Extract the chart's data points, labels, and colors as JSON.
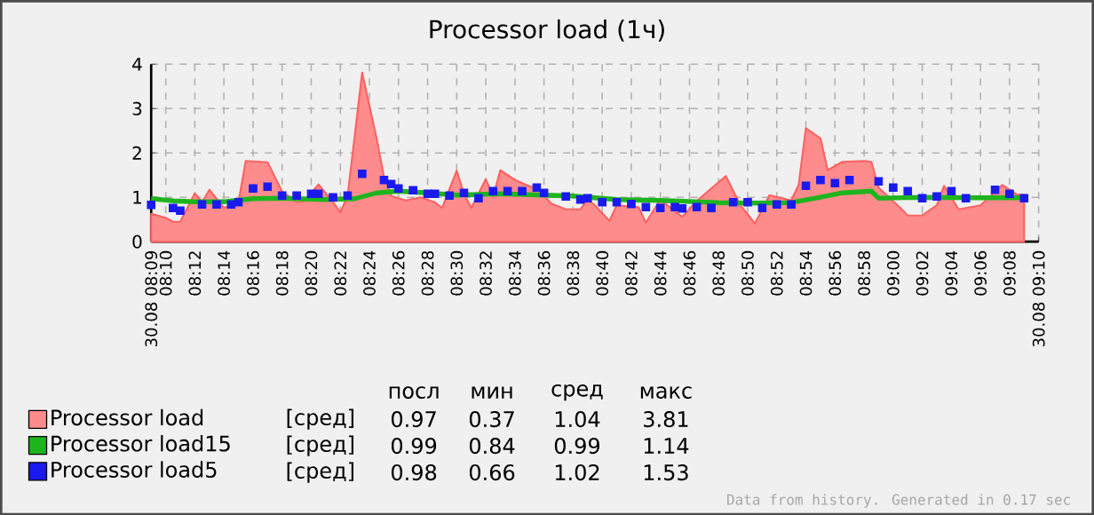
{
  "chart_data": {
    "type": "area",
    "title": "Processor load (1ч)",
    "xlim": [
      8.15,
      9.1667
    ],
    "ylim": [
      0,
      4
    ],
    "yticks": [
      0,
      1,
      2,
      3,
      4
    ],
    "xticks": [
      {
        "value": 8.15,
        "label": "30.08 08:09"
      },
      {
        "value": 8.1667,
        "label": "08:10"
      },
      {
        "value": 8.2,
        "label": "08:12"
      },
      {
        "value": 8.2333,
        "label": "08:14"
      },
      {
        "value": 8.2667,
        "label": "08:16"
      },
      {
        "value": 8.3,
        "label": "08:18"
      },
      {
        "value": 8.3333,
        "label": "08:20"
      },
      {
        "value": 8.3667,
        "label": "08:22"
      },
      {
        "value": 8.4,
        "label": "08:24"
      },
      {
        "value": 8.4333,
        "label": "08:26"
      },
      {
        "value": 8.4667,
        "label": "08:28"
      },
      {
        "value": 8.5,
        "label": "08:30"
      },
      {
        "value": 8.5333,
        "label": "08:32"
      },
      {
        "value": 8.5667,
        "label": "08:34"
      },
      {
        "value": 8.6,
        "label": "08:36"
      },
      {
        "value": 8.6333,
        "label": "08:38"
      },
      {
        "value": 8.6667,
        "label": "08:40"
      },
      {
        "value": 8.7,
        "label": "08:42"
      },
      {
        "value": 8.7333,
        "label": "08:44"
      },
      {
        "value": 8.7667,
        "label": "08:46"
      },
      {
        "value": 8.8,
        "label": "08:48"
      },
      {
        "value": 8.8333,
        "label": "08:50"
      },
      {
        "value": 8.8667,
        "label": "08:52"
      },
      {
        "value": 8.9,
        "label": "08:54"
      },
      {
        "value": 8.9333,
        "label": "08:56"
      },
      {
        "value": 8.9667,
        "label": "08:58"
      },
      {
        "value": 9,
        "label": "09:00"
      },
      {
        "value": 9.0333,
        "label": "09:02"
      },
      {
        "value": 9.0667,
        "label": "09:04"
      },
      {
        "value": 9.1,
        "label": "09:06"
      },
      {
        "value": 9.1333,
        "label": "09:08"
      },
      {
        "value": 9.1667,
        "label": "30.08 09:10"
      }
    ],
    "grid": true,
    "legend": "bottom",
    "series": [
      {
        "name": "Processor load",
        "color": "#ff8c8c",
        "x": [
          8.15,
          8.1667,
          8.175,
          8.1833,
          8.2,
          8.2083,
          8.2167,
          8.2333,
          8.25,
          8.2583,
          8.2833,
          8.3,
          8.3167,
          8.325,
          8.3417,
          8.3583,
          8.3667,
          8.375,
          8.3917,
          8.4083,
          8.4167,
          8.425,
          8.4417,
          8.4583,
          8.475,
          8.4833,
          8.5,
          8.5083,
          8.5167,
          8.5333,
          8.5417,
          8.55,
          8.5667,
          8.5833,
          8.5917,
          8.6083,
          8.625,
          8.6417,
          8.65,
          8.6583,
          8.675,
          8.6833,
          8.7083,
          8.7167,
          8.7333,
          8.7583,
          8.775,
          8.8083,
          8.825,
          8.8417,
          8.8583,
          8.8833,
          8.8917,
          8.9,
          8.9167,
          8.925,
          8.9417,
          8.9667,
          8.975,
          8.9833,
          9.0083,
          9.0167,
          9.0333,
          9.05,
          9.0583,
          9.075,
          9.1,
          9.125,
          9.1417,
          9.15
        ],
        "values": [
          0.63,
          0.54,
          0.45,
          0.45,
          1.09,
          0.89,
          1.17,
          0.76,
          0.89,
          1.82,
          1.79,
          1.13,
          0.89,
          0.91,
          1.29,
          0.89,
          0.66,
          1.03,
          3.81,
          2.32,
          1.46,
          1.03,
          0.93,
          1.0,
          0.89,
          0.76,
          1.6,
          1.08,
          0.76,
          1.41,
          1.02,
          1.61,
          1.39,
          1.25,
          1.22,
          0.86,
          0.73,
          0.73,
          0.95,
          0.82,
          0.47,
          0.82,
          0.78,
          0.43,
          0.95,
          0.56,
          0.92,
          1.48,
          0.82,
          0.41,
          1.05,
          0.93,
          1.28,
          2.56,
          2.33,
          1.61,
          1.8,
          1.82,
          1.8,
          1.22,
          0.76,
          0.59,
          0.59,
          0.82,
          1.26,
          0.73,
          0.82,
          1.28,
          1.06,
          1.06
        ]
      },
      {
        "name": "Processor load15",
        "type": "line",
        "color": "#1eb41e",
        "line_style": "solid",
        "x": [
          8.15,
          8.175,
          8.2,
          8.2333,
          8.2667,
          8.3,
          8.35,
          8.3833,
          8.4083,
          8.4333,
          8.4667,
          8.5,
          8.55,
          8.6,
          8.6333,
          8.6833,
          8.7333,
          8.8,
          8.8333,
          8.8833,
          8.9167,
          8.9417,
          8.975,
          8.9833,
          9.0333,
          9.1,
          9.15
        ],
        "values": [
          0.97,
          0.92,
          0.9,
          0.9,
          0.97,
          0.98,
          0.95,
          0.97,
          1.1,
          1.14,
          1.1,
          1.05,
          1.08,
          1.05,
          1.03,
          0.95,
          0.93,
          0.88,
          0.87,
          0.88,
          1.0,
          1.1,
          1.14,
          0.98,
          1.0,
          0.99,
          0.99
        ]
      },
      {
        "name": "Processor load5",
        "type": "scatter",
        "marker": "square",
        "color": "#1a1aee",
        "x": [
          8.15,
          8.175,
          8.1833,
          8.2083,
          8.225,
          8.2417,
          8.25,
          8.2667,
          8.2833,
          8.3,
          8.3167,
          8.3333,
          8.3417,
          8.3583,
          8.375,
          8.3917,
          8.4167,
          8.425,
          8.4333,
          8.45,
          8.4667,
          8.475,
          8.4917,
          8.5083,
          8.525,
          8.5417,
          8.5583,
          8.575,
          8.5917,
          8.6,
          8.625,
          8.6417,
          8.65,
          8.6667,
          8.6833,
          8.7,
          8.7167,
          8.7333,
          8.75,
          8.7583,
          8.775,
          8.7917,
          8.8167,
          8.8333,
          8.85,
          8.8667,
          8.8833,
          8.9,
          8.9167,
          8.9333,
          8.95,
          8.9833,
          9.0,
          9.0167,
          9.0333,
          9.05,
          9.0667,
          9.0833,
          9.1167,
          9.1333,
          9.15
        ],
        "values": [
          0.83,
          0.76,
          0.7,
          0.84,
          0.84,
          0.84,
          0.89,
          1.2,
          1.24,
          1.04,
          1.04,
          1.08,
          1.08,
          1.0,
          1.04,
          1.53,
          1.39,
          1.3,
          1.2,
          1.16,
          1.08,
          1.08,
          1.04,
          1.1,
          0.98,
          1.14,
          1.14,
          1.14,
          1.22,
          1.1,
          1.02,
          0.95,
          0.98,
          0.89,
          0.89,
          0.85,
          0.78,
          0.76,
          0.78,
          0.75,
          0.78,
          0.76,
          0.89,
          0.89,
          0.76,
          0.84,
          0.84,
          1.26,
          1.39,
          1.32,
          1.39,
          1.36,
          1.22,
          1.14,
          0.98,
          1.02,
          1.14,
          0.98,
          1.17,
          1.08,
          0.98
        ]
      }
    ],
    "annotations": [
      "посл",
      "мин",
      "сред",
      "макс",
      "[сред]",
      "0.97",
      "0.37",
      "1.04",
      "3.81",
      "[сред]",
      "0.99",
      "0.84",
      "0.99",
      "1.14",
      "[сред]",
      "0.98",
      "0.66",
      "1.02",
      "1.53",
      "Data from history. Generated in 0.17 sec"
    ]
  }
}
